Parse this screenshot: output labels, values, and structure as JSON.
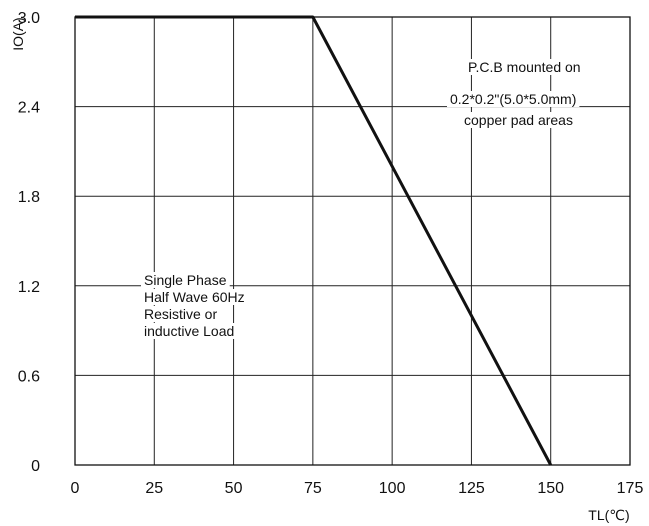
{
  "chart_data": {
    "type": "line",
    "xlabel": "TL(℃)",
    "ylabel": "IO(A)",
    "xlim": [
      0,
      175
    ],
    "ylim": [
      0,
      3.0
    ],
    "x_ticks": [
      "0",
      "25",
      "50",
      "75",
      "100",
      "125",
      "150",
      "175"
    ],
    "y_ticks": [
      "0",
      "0.6",
      "1.2",
      "1.8",
      "2.4",
      "3.0"
    ],
    "grid": true,
    "series": [
      {
        "x": [
          0,
          75,
          150
        ],
        "y": [
          3.0,
          3.0,
          0
        ]
      }
    ],
    "annotations": [
      {
        "lines": [
          "P.C.B mounted on",
          "0.2*0.2\"(5.0*5.0mm)",
          "copper pad areas"
        ]
      },
      {
        "lines": [
          "Single Phase",
          "Half Wave 60Hz",
          "Resistive or",
          "inductive Load"
        ]
      }
    ]
  }
}
